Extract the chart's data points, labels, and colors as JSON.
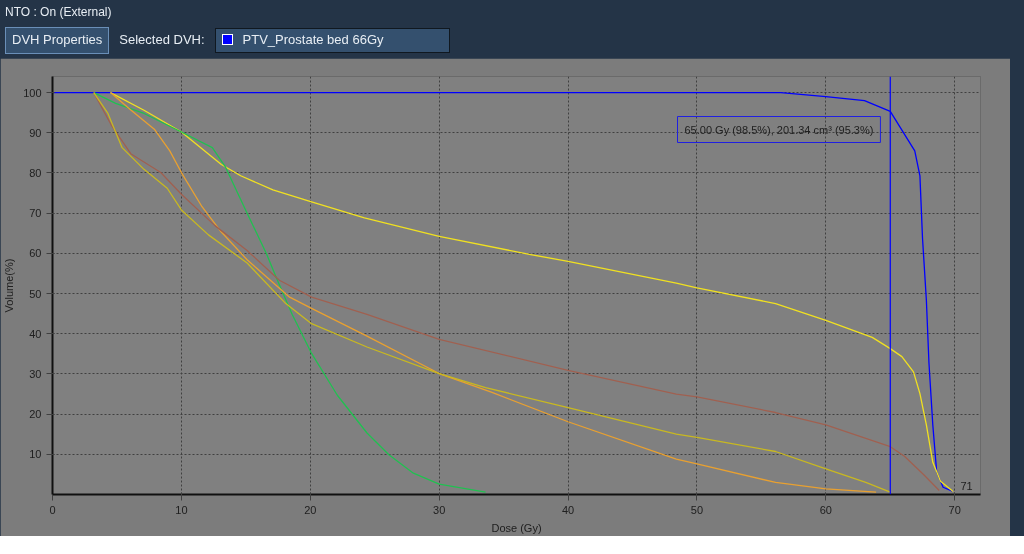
{
  "chart_data": {
    "type": "line",
    "xlabel": "Dose (Gy)",
    "ylabel": "Volume(%)",
    "legend_title": "Selected DVH:",
    "legend": "top",
    "xlim": [
      0,
      72
    ],
    "ylim": [
      0,
      104
    ],
    "xticks": [
      0,
      10,
      20,
      30,
      40,
      50,
      60,
      70
    ],
    "yticks": [
      10,
      20,
      30,
      40,
      50,
      60,
      70,
      80,
      90,
      100
    ],
    "grid": true,
    "line_style": "solid",
    "annotations": [
      "NTO : On (External)",
      "DVH Properties",
      "65.00 Gy (98.5%), 201.34 cm³ (95.3%)",
      "71"
    ],
    "ref_lines": [
      {
        "axis": "x",
        "value": 65,
        "color": "#0000ff"
      }
    ],
    "series": [
      {
        "name": "PTV_Prostate bed 66Gy",
        "color": "#0000ff",
        "x": [
          0,
          56.5,
          60,
          63,
          65,
          66.9,
          67.3,
          67.5,
          67.8,
          68.0,
          68.3,
          68.6,
          69.1,
          69.9
        ],
        "values": [
          100,
          100,
          99,
          98,
          95.3,
          85.5,
          79.3,
          63.8,
          48.4,
          32.8,
          17.3,
          5.6,
          1.8,
          0.7
        ]
      },
      {
        "color": "#f0e020",
        "x": [
          4.5,
          7.1,
          10.0,
          13.1,
          14.6,
          17.1,
          20.1,
          24.2,
          30.0,
          37.1,
          40.0,
          48.4,
          50.0,
          56.1,
          60.0,
          63.6,
          65.0,
          65.9,
          66.8,
          67.3,
          67.8,
          68.3,
          68.9,
          69.9
        ],
        "values": [
          100,
          95.6,
          90.2,
          82.1,
          79.3,
          75.8,
          72.8,
          68.8,
          64.2,
          59.7,
          58.0,
          52.6,
          51.4,
          47.5,
          43.3,
          39.1,
          36.3,
          34.3,
          30.5,
          25.1,
          17.3,
          8.0,
          3.3,
          0.7
        ]
      },
      {
        "color": "#20c050",
        "x": [
          3.2,
          4.9,
          7.1,
          10.0,
          12.4,
          13.4,
          15.1,
          16.6,
          17.4,
          18.6,
          20.1,
          22.1,
          24.4,
          26.1,
          28.0,
          30.0,
          33.6
        ],
        "values": [
          100,
          97.3,
          94.8,
          90.2,
          86.3,
          81.6,
          70.0,
          59.9,
          53.7,
          44.8,
          35.1,
          24.7,
          15.3,
          9.9,
          5.3,
          2.6,
          0.6
        ]
      },
      {
        "color": "#e8a030",
        "x": [
          4.5,
          6.1,
          7.9,
          9.1,
          10.0,
          11.6,
          13.1,
          15.1,
          18.4,
          20.1,
          24.4,
          30.0,
          34.1,
          40.0,
          48.4,
          50.0,
          56.1,
          60.0,
          63.9
        ],
        "values": [
          100,
          95.6,
          90.9,
          85.5,
          80.1,
          71.6,
          65.3,
          58.4,
          49.1,
          46.3,
          39.4,
          30.1,
          25.4,
          18.1,
          8.8,
          7.6,
          3.0,
          1.4,
          0.6
        ]
      },
      {
        "color": "#a06050",
        "x": [
          3.2,
          4.6,
          6.1,
          8.4,
          10.0,
          12.6,
          15.1,
          17.6,
          20.1,
          24.4,
          30.0,
          40.0,
          48.4,
          50.0,
          56.1,
          60.0,
          65.0,
          66.1,
          67.6,
          68.8
        ],
        "values": [
          100,
          91.7,
          84.7,
          80.1,
          74.7,
          66.9,
          60.7,
          53.3,
          49.1,
          44.8,
          38.6,
          30.9,
          25.0,
          24.3,
          20.4,
          17.3,
          11.9,
          9.5,
          4.9,
          1.0
        ]
      },
      {
        "color": "#c8b820",
        "x": [
          3.2,
          4.3,
          5.4,
          7.1,
          8.9,
          10.0,
          12.1,
          15.1,
          18.1,
          20.1,
          24.4,
          30.0,
          33.6,
          40.0,
          48.4,
          50.0,
          56.1,
          60.0,
          63.1,
          65.0
        ],
        "values": [
          100,
          94.8,
          86.3,
          80.9,
          76.2,
          70.8,
          64.6,
          57.6,
          47.5,
          42.5,
          36.7,
          30.1,
          26.6,
          21.6,
          15.0,
          14.2,
          10.7,
          6.4,
          3.0,
          0.6
        ]
      }
    ]
  }
}
